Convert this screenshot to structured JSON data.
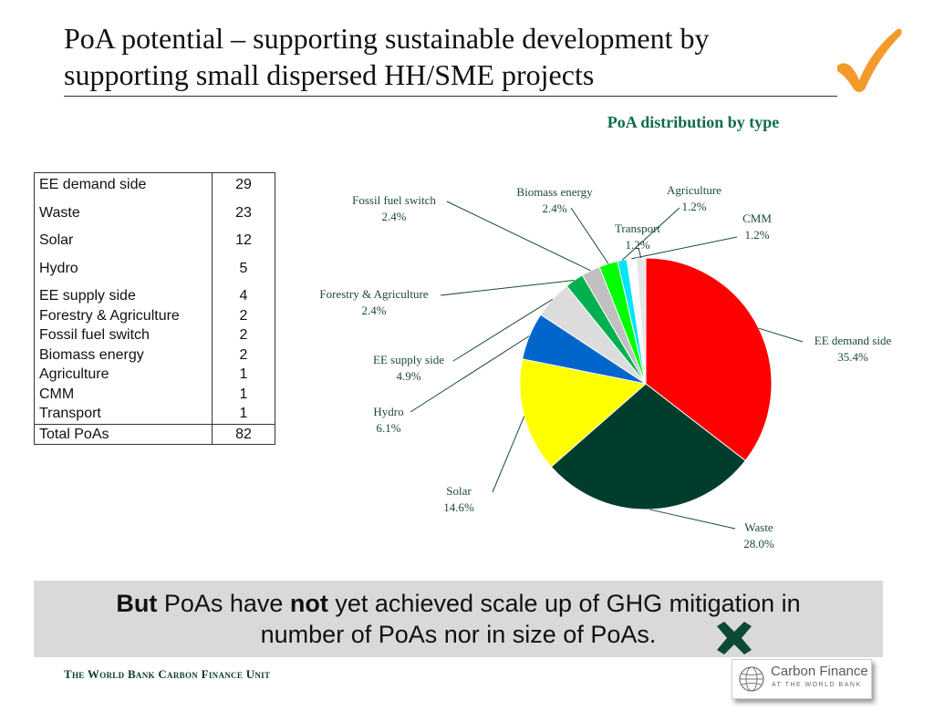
{
  "slide": {
    "title_line1": "PoA potential – supporting sustainable development by",
    "title_line2": "supporting small dispersed HH/SME projects",
    "footer": "The World Bank Carbon Finance Unit",
    "logo_name": "Carbon Finance",
    "logo_sub": "AT THE WORLD BANK",
    "banner": {
      "part1": "But",
      "part2": " PoAs have ",
      "part3": "not",
      "part4": " yet achieved scale up of GHG mitigation in",
      "line2": "number of PoAs nor in size of PoAs."
    },
    "checkmark_icon": "checkmark-icon",
    "cross_icon": "cross-icon",
    "colors": {
      "title_green": "#0f6b4c",
      "checkmark": "#f39a2c",
      "cross": "#0d4a33",
      "banner_bg": "#d9d9d9"
    }
  },
  "table": {
    "rows": [
      {
        "category": "EE demand side",
        "value": "29"
      },
      {
        "category": "Waste",
        "value": "23"
      },
      {
        "category": "Solar",
        "value": "12"
      },
      {
        "category": "Hydro",
        "value": "5"
      },
      {
        "category": "EE supply side",
        "value": "4"
      },
      {
        "category": "Forestry & Agriculture",
        "value": "2"
      },
      {
        "category": "Fossil fuel switch",
        "value": "2"
      },
      {
        "category": "Biomass energy",
        "value": "2"
      },
      {
        "category": "Agriculture",
        "value": "1"
      },
      {
        "category": "CMM",
        "value": "1"
      },
      {
        "category": "Transport",
        "value": "1"
      }
    ],
    "total_label": "Total PoAs",
    "total_value": "82"
  },
  "chart_data": {
    "type": "pie",
    "title": "PoA distribution by type",
    "unit": "%",
    "legend": "none (callout labels)",
    "slices": [
      {
        "label": "EE demand side",
        "value": 35.4,
        "color": "#ff0000"
      },
      {
        "label": "Waste",
        "value": 28.0,
        "color": "#003d2c"
      },
      {
        "label": "Solar",
        "value": 14.6,
        "color": "#ffff00"
      },
      {
        "label": "Hydro",
        "value": 6.1,
        "color": "#0066cc"
      },
      {
        "label": "EE supply side",
        "value": 4.9,
        "color": "#dcdcdc"
      },
      {
        "label": "Forestry & Agriculture",
        "value": 2.4,
        "color": "#00b050"
      },
      {
        "label": "Fossil fuel switch",
        "value": 2.4,
        "color": "#c0c0c0"
      },
      {
        "label": "Biomass energy",
        "value": 2.4,
        "color": "#00ff00"
      },
      {
        "label": "Agriculture",
        "value": 1.2,
        "color": "#00e5ff"
      },
      {
        "label": "CMM",
        "value": 1.2,
        "color": "#ffffff"
      },
      {
        "label": "Transport",
        "value": 1.2,
        "color": "#e6e6e6"
      }
    ],
    "value_labels": [
      "35.4%",
      "28.0%",
      "14.6%",
      "6.1%",
      "4.9%",
      "2.4%",
      "2.4%",
      "2.4%",
      "1.2%",
      "1.2%",
      "1.2%"
    ]
  }
}
